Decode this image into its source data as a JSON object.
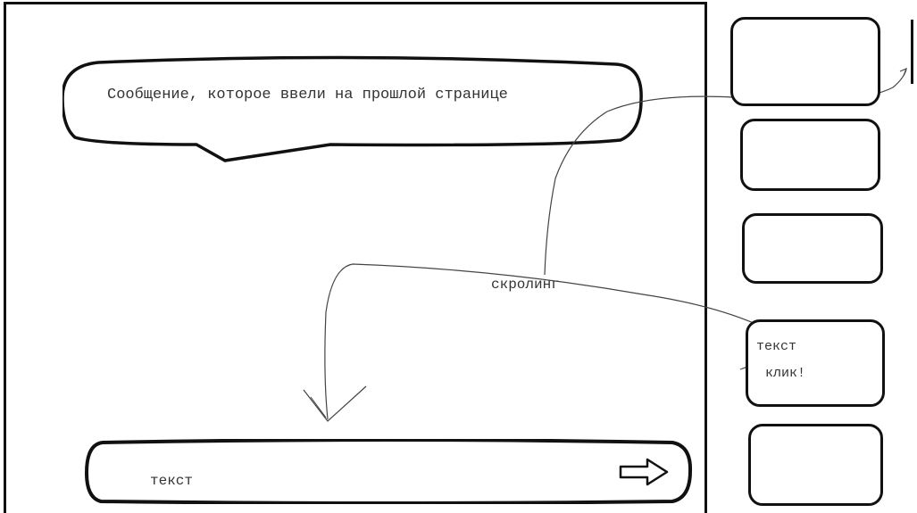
{
  "message": {
    "text": "Сообщение, которое ввели на прошлой странице"
  },
  "annotations": {
    "scroll": "скролинг",
    "click": "клик!"
  },
  "input": {
    "text": "текст"
  },
  "sidebar": {
    "item_label": "текст"
  }
}
